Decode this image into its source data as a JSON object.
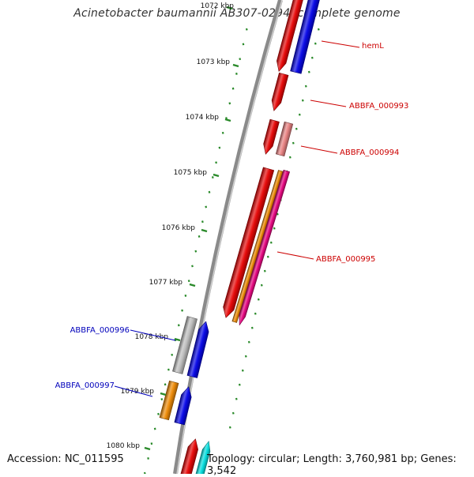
{
  "title": "Acinetobacter baumannii AB307-0294, complete genome",
  "footer": {
    "accession": "Accession: NC_011595",
    "summary": "Topology: circular; Length: 3,760,981 bp; Genes: 3,542"
  },
  "colors": {
    "backbone": "#8a8a8a",
    "tick_dots": "#2a8a2a",
    "forward_label": "#cc0000",
    "reverse_label": "#0000bb"
  },
  "kbp_ticks": [
    "1072 kbp",
    "1073 kbp",
    "1074 kbp",
    "1075 kbp",
    "1076 kbp",
    "1077 kbp",
    "1078 kbp",
    "1079 kbp",
    "1080 kbp"
  ],
  "gene_labels": [
    "hemL",
    "ABBFA_000993",
    "ABBFA_000994",
    "ABBFA_000995",
    "ABBFA_000996",
    "ABBFA_000997"
  ],
  "gene_colors": {
    "red": "#e60000",
    "blue": "#0000e6",
    "salmon": "#e88080",
    "orange": "#ee8800",
    "magenta": "#e6007e",
    "grey": "#bbbbbb",
    "cyan": "#00dede"
  }
}
